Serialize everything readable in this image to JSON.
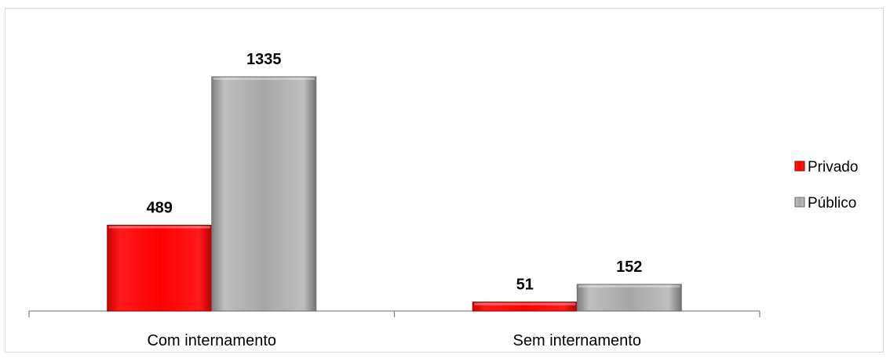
{
  "chart_data": {
    "type": "bar",
    "categories": [
      "Com internamento",
      "Sem internamento"
    ],
    "series": [
      {
        "name": "Privado",
        "values": [
          489,
          51
        ],
        "color": "#ff0000"
      },
      {
        "name": "Público",
        "values": [
          1335,
          152
        ],
        "color": "#a6a6a6"
      }
    ],
    "ylim": [
      0,
      1335
    ],
    "grid": false,
    "legend_position": "right",
    "title": "",
    "xlabel": "",
    "ylabel": ""
  }
}
